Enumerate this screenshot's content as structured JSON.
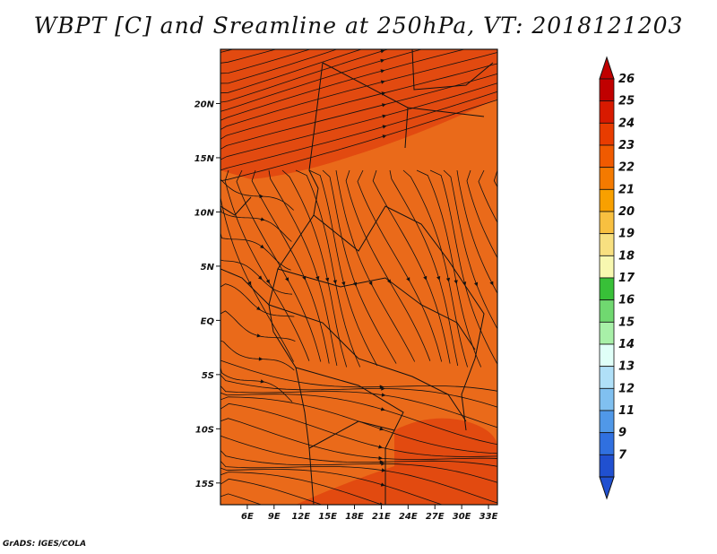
{
  "title": "WBPT [C] and Sreamline at 250hPa, VT: 2018121203",
  "credit": "GrADS: IGES/COLA",
  "map": {
    "variable": "WBPT [C]",
    "level": "250hPa",
    "valid_time": "2018121203",
    "lon_range": [
      3,
      34
    ],
    "lat_range": [
      -17,
      25
    ],
    "background_color": "#ea6a1a",
    "warm_region_color": "#e24a10",
    "streamline_color": "#111111",
    "lat_ticks": [
      {
        "value": 20,
        "label": "20N"
      },
      {
        "value": 15,
        "label": "15N"
      },
      {
        "value": 10,
        "label": "10N"
      },
      {
        "value": 5,
        "label": "5N"
      },
      {
        "value": 0,
        "label": "EQ"
      },
      {
        "value": -5,
        "label": "5S"
      },
      {
        "value": -10,
        "label": "10S"
      },
      {
        "value": -15,
        "label": "15S"
      }
    ],
    "lon_ticks": [
      {
        "value": 6,
        "label": "6E"
      },
      {
        "value": 9,
        "label": "9E"
      },
      {
        "value": 12,
        "label": "12E"
      },
      {
        "value": 15,
        "label": "15E"
      },
      {
        "value": 18,
        "label": "18E"
      },
      {
        "value": 21,
        "label": "21E"
      },
      {
        "value": 24,
        "label": "24E"
      },
      {
        "value": 27,
        "label": "27E"
      },
      {
        "value": 30,
        "label": "30E"
      },
      {
        "value": 33,
        "label": "33E"
      }
    ]
  },
  "colorbar": {
    "labels": [
      "26",
      "25",
      "24",
      "23",
      "22",
      "21",
      "20",
      "19",
      "18",
      "17",
      "16",
      "15",
      "14",
      "13",
      "12",
      "11",
      "9",
      "7"
    ],
    "colors": [
      "#c00000",
      "#d81a00",
      "#e83c00",
      "#f05a00",
      "#f47a00",
      "#f8a000",
      "#f8c040",
      "#f8e080",
      "#f8f8b0",
      "#38c038",
      "#70d870",
      "#a8f0a8",
      "#e0fff8",
      "#b0e0f8",
      "#80c0f0",
      "#5098e8",
      "#3070e0",
      "#2050d0"
    ]
  }
}
